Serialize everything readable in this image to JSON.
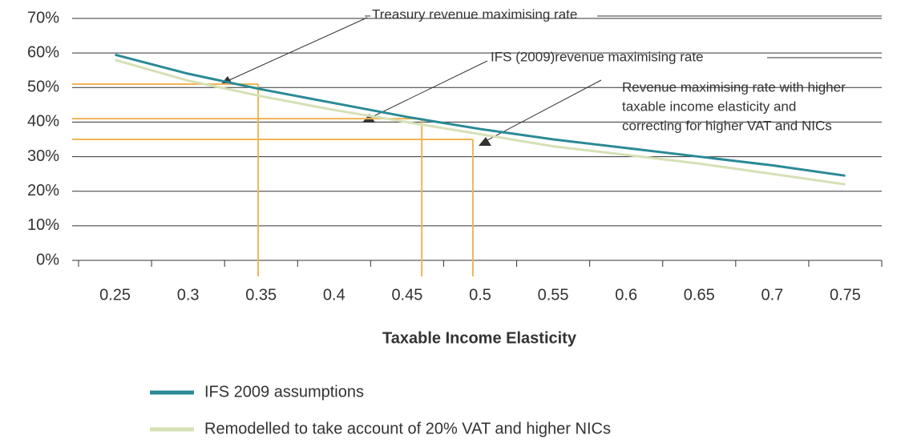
{
  "chart_data": {
    "type": "line",
    "xlabel": "Taxable Income Elasticity",
    "x": [
      0.25,
      0.3,
      0.35,
      0.4,
      0.45,
      0.5,
      0.55,
      0.6,
      0.65,
      0.7,
      0.75
    ],
    "series": [
      {
        "name": "IFS 2009 assumptions",
        "color": "#2a8a96",
        "values": [
          59.5,
          54,
          49.5,
          45.5,
          41.5,
          38,
          35,
          32.5,
          30,
          27.5,
          24.5
        ]
      },
      {
        "name": "Remodelled to take account of 20% VAT and higher NICs",
        "color": "#d5e0b5",
        "values": [
          58,
          52,
          47.5,
          43.5,
          40,
          36.5,
          33,
          30.5,
          28,
          25,
          22
        ]
      }
    ],
    "xlim": [
      0.225,
      0.775
    ],
    "xticks": [
      0.25,
      0.3,
      0.35,
      0.4,
      0.45,
      0.5,
      0.55,
      0.6,
      0.65,
      0.7,
      0.75
    ],
    "ylim": [
      0,
      70
    ],
    "yticks": [
      {
        "value": 0,
        "label": "0%"
      },
      {
        "value": 10,
        "label": "10%"
      },
      {
        "value": 20,
        "label": "20%"
      },
      {
        "value": 30,
        "label": "30%"
      },
      {
        "value": 40,
        "label": "40%"
      },
      {
        "value": 50,
        "label": "50%"
      },
      {
        "value": 60,
        "label": "60%"
      },
      {
        "value": 70,
        "label": "70%"
      }
    ],
    "grid": true,
    "reference_color": "#f0b456",
    "reference_lines": [
      {
        "x": 0.348,
        "y": 51
      },
      {
        "x": 0.46,
        "y": 41
      },
      {
        "x": 0.495,
        "y": 35
      }
    ],
    "annotations": [
      "Treasury revenue maximising rate",
      "IFS (2009)revenue maximising rate",
      "Revenue maximising rate with higher",
      "taxable income elasticity and",
      "correcting for higher VAT and NICs"
    ]
  }
}
